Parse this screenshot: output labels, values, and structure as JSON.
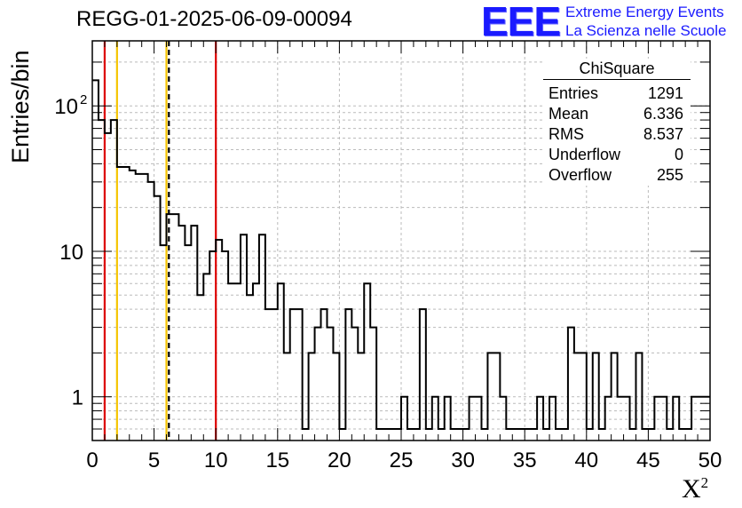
{
  "title": "REGG-01-2025-06-09-00094",
  "logo": {
    "mark": "EEE",
    "line1": "Extreme Energy Events",
    "line2": "La Scienza nelle Scuole",
    "color": "#1a1aff"
  },
  "stats_box": {
    "title": "ChiSquare",
    "rows": [
      {
        "label": "Entries",
        "value": "1291"
      },
      {
        "label": "Mean",
        "value": "6.336"
      },
      {
        "label": "RMS",
        "value": "8.537"
      },
      {
        "label": "Underflow",
        "value": "0"
      },
      {
        "label": "Overflow",
        "value": "255"
      }
    ]
  },
  "chart_data": {
    "type": "bar",
    "style": "step-histogram",
    "title": "REGG-01-2025-06-09-00094",
    "ylabel": "Entries/bin",
    "xlabel_base": "X",
    "xlabel_sup": "2",
    "xlim": [
      0,
      50
    ],
    "ylim": [
      0.5,
      280
    ],
    "ylog": true,
    "grid": true,
    "bin_width": 0.5,
    "bin_start": 0,
    "values": [
      150,
      80,
      65,
      80,
      38,
      38,
      36,
      34,
      34,
      30,
      24,
      11,
      18,
      18,
      15,
      11,
      15,
      5,
      7,
      10,
      12,
      10,
      6,
      6,
      13,
      5,
      6,
      13,
      4,
      4,
      6,
      2,
      4,
      4,
      0.6,
      2,
      3,
      4,
      3,
      2,
      0.6,
      4,
      3,
      2,
      6,
      3,
      0.6,
      0.6,
      0.6,
      0.6,
      1,
      0.6,
      0.6,
      4,
      0.6,
      1,
      0.6,
      1,
      0.6,
      0.6,
      0.6,
      1,
      1,
      0.6,
      2,
      2,
      1,
      0.6,
      0.6,
      0.6,
      0.6,
      0.6,
      1,
      0.6,
      1,
      0.6,
      0.6,
      3,
      2,
      2,
      0.6,
      2,
      0.6,
      1,
      2,
      1,
      1,
      0.6,
      2,
      0.6,
      0.6,
      1,
      1,
      0.6,
      1,
      0.6,
      0.6,
      1,
      1,
      1
    ],
    "x_ticks": [
      "0",
      "5",
      "10",
      "15",
      "20",
      "25",
      "30",
      "35",
      "40",
      "45",
      "50"
    ],
    "y_ticks": [
      {
        "value": 1,
        "label": "1",
        "sup": ""
      },
      {
        "value": 10,
        "label": "10",
        "sup": ""
      },
      {
        "value": 100,
        "label": "10",
        "sup": "2"
      }
    ],
    "vertical_lines": [
      {
        "x": 1,
        "color": "#dd0000",
        "style": "solid"
      },
      {
        "x": 2,
        "color": "#f5c400",
        "style": "solid"
      },
      {
        "x": 6,
        "color": "#f5c400",
        "style": "solid"
      },
      {
        "x": 6.2,
        "color": "#000000",
        "style": "dashed"
      },
      {
        "x": 10,
        "color": "#dd0000",
        "style": "solid"
      }
    ],
    "colors": {
      "histogram": "#000000",
      "grid": "#bbbbbb"
    }
  }
}
